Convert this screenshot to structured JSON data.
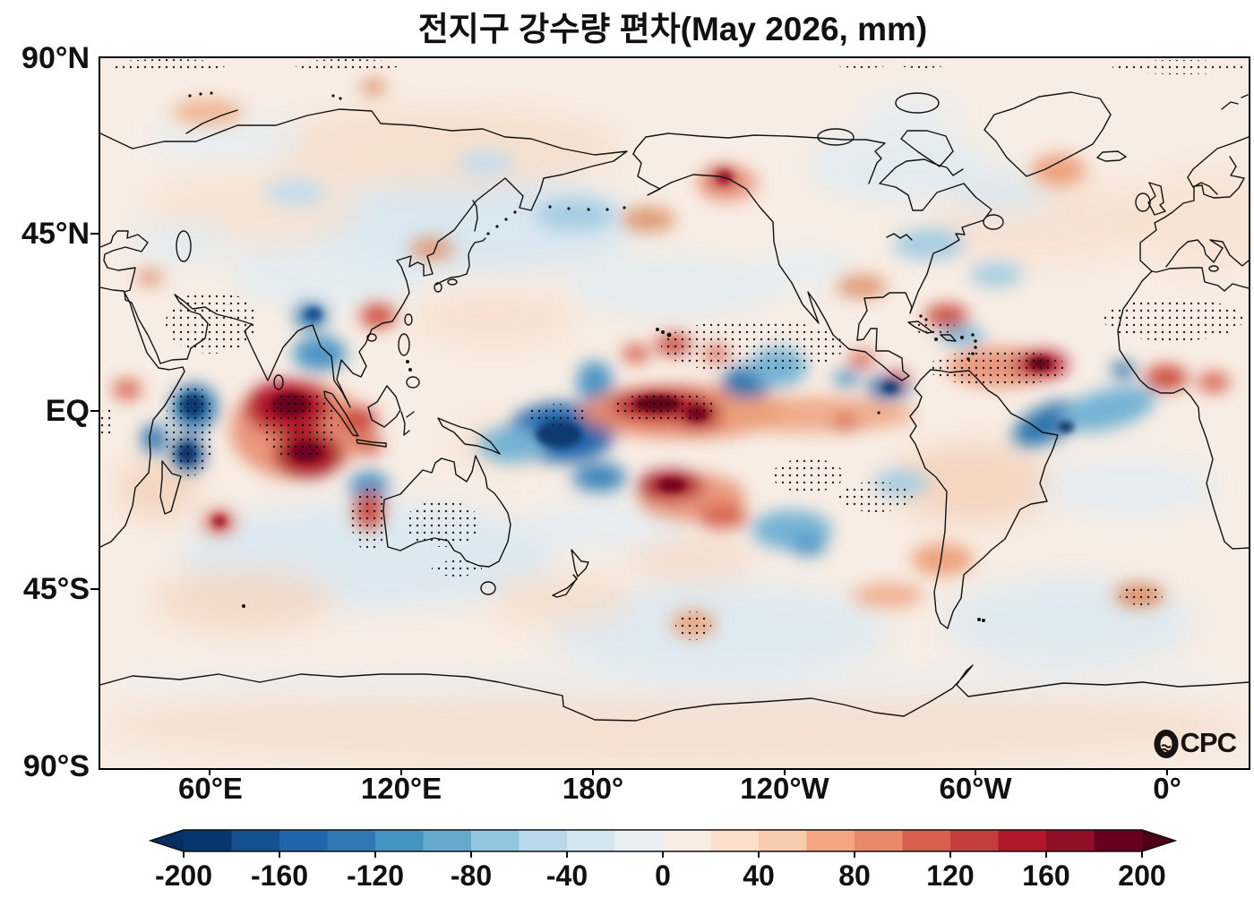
{
  "title": "전지구 강수량 편차(May 2026, mm)",
  "logo": {
    "text": "CPC",
    "icon": "globe-wave-icon"
  },
  "axes": {
    "lat_ticks": [
      "90°N",
      "45°N",
      "EQ",
      "45°S",
      "90°S"
    ],
    "lon_ticks": [
      "60°E",
      "120°E",
      "180°",
      "120°W",
      "60°W",
      "0°"
    ]
  },
  "chart_data": {
    "type": "heatmap",
    "title": "전지구 강수량 편차(May 2026, mm)",
    "variable": "global precipitation anomaly",
    "period": "May 2026",
    "units": "mm",
    "projection": "equirectangular, Pacific-centered (left edge ~25°E)",
    "lat_range": [
      -90,
      90
    ],
    "lat_ticks_deg": [
      90,
      45,
      0,
      -45,
      -90
    ],
    "lon_ticks_deg": [
      60,
      120,
      180,
      -120,
      -60,
      0
    ],
    "grid": false,
    "stippling_note": "black dots mark statistically significant anomalies",
    "stippling_regions": [
      "high Arctic bands",
      "Arabian Peninsula/Iran",
      "W Indian Ocean off Somalia",
      "central Indian Ocean maximum",
      "S Indian Ocean",
      "W/C Australia",
      "W Pacific minimum",
      "C Pacific maximum",
      "NE subtropical Pacific",
      "S Pacific maximum",
      "SE Pacific off S America",
      "tropical N Atlantic",
      "N Africa",
      "S mid-latitude Pacific",
      "S Atlantic"
    ],
    "colorbar": {
      "min": -200,
      "max": 200,
      "step": 20,
      "tick_labels": [
        "-200",
        "-160",
        "-120",
        "-80",
        "-40",
        "0",
        "40",
        "80",
        "120",
        "160",
        "200"
      ],
      "colors": [
        "#08366e",
        "#14508f",
        "#2166ac",
        "#3077b5",
        "#4393c3",
        "#66a9cf",
        "#92c5de",
        "#b9d8e9",
        "#d3e6f0",
        "#e9f0f4",
        "#f9ece2",
        "#fbdfcb",
        "#f9cbae",
        "#f4a582",
        "#e8876a",
        "#d6604d",
        "#c43e3c",
        "#b2182b",
        "#8f0f26",
        "#67001f"
      ],
      "under_color": "#053061",
      "over_color": "#4f0018"
    },
    "anomaly_features": [
      {
        "region": "W Indian Ocean off Somalia",
        "lon": 55,
        "lat": -1,
        "anomaly_mm": -160
      },
      {
        "region": "SW Indian Ocean NE of Madagascar",
        "lon": 52,
        "lat": -10,
        "anomaly_mm": -120
      },
      {
        "region": "central equatorial Indian Ocean",
        "lon": 84,
        "lat": -2,
        "anomaly_mm": 200
      },
      {
        "region": "SE tropical Indian Ocean",
        "lon": 90,
        "lat": -12,
        "anomaly_mm": 180
      },
      {
        "region": "Bay of Bengal",
        "lon": 88,
        "lat": 14,
        "anomaly_mm": -80
      },
      {
        "region": "Bangladesh / NE India",
        "lon": 91,
        "lat": 25,
        "anomaly_mm": -120
      },
      {
        "region": "S China coast",
        "lon": 112,
        "lat": 25,
        "anomaly_mm": 80
      },
      {
        "region": "Sumatra / Malay Peninsula",
        "lon": 100,
        "lat": 0,
        "anomaly_mm": 100
      },
      {
        "region": "NW Australia offshore",
        "lon": 110,
        "lat": -14,
        "anomaly_mm": -80
      },
      {
        "region": "W equatorial Pacific",
        "lon": 168,
        "lat": -5,
        "anomaly_mm": -200
      },
      {
        "region": "central equatorial Pacific",
        "lon": -157,
        "lat": 2,
        "anomaly_mm": 200
      },
      {
        "region": "NE subtropical Pacific",
        "lon": -133,
        "lat": 8,
        "anomaly_mm": -100
      },
      {
        "region": "South Pacific",
        "lon": -157,
        "lat": -18,
        "anomaly_mm": 160
      },
      {
        "region": "Gulf of Alaska coast",
        "lon": -141,
        "lat": 58,
        "anomaly_mm": 120
      },
      {
        "region": "E Pacific off Panama",
        "lon": -83,
        "lat": 5,
        "anomaly_mm": -120
      },
      {
        "region": "tropical N Atlantic ITCZ",
        "lon": -41,
        "lat": 12,
        "anomaly_mm": 200
      },
      {
        "region": "NE Brazil coast",
        "lon": -33,
        "lat": -3,
        "anomaly_mm": -140
      },
      {
        "region": "W Atlantic near Bahamas",
        "lon": -68,
        "lat": 27,
        "anomaly_mm": 80
      },
      {
        "region": "W Africa / Guinea coast",
        "lon": 5,
        "lat": 8,
        "anomaly_mm": 80
      },
      {
        "region": "S of Madagascar",
        "lon": 47,
        "lat": -27,
        "anomaly_mm": 80
      }
    ]
  }
}
